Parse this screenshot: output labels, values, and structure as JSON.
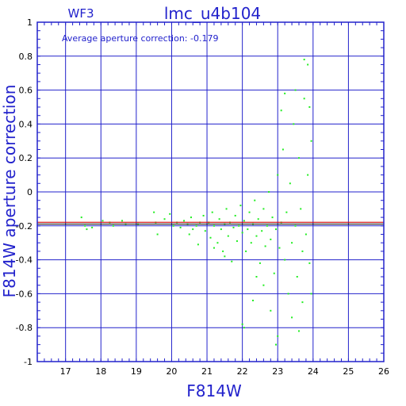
{
  "chart_data": {
    "type": "scatter",
    "title": "lmc_u4b104",
    "chip_label": "WF3",
    "annotation": "Average aperture correction: -0.179",
    "xlabel": "F814W",
    "ylabel": "F814W aperture correction",
    "xlim": [
      16.2,
      26
    ],
    "ylim": [
      -1,
      1
    ],
    "x_ticks": [
      17,
      18,
      19,
      20,
      21,
      22,
      23,
      24,
      25,
      26
    ],
    "y_ticks": [
      -1,
      -0.8,
      -0.6,
      -0.4,
      -0.2,
      0,
      0.2,
      0.4,
      0.6,
      0.8,
      1
    ],
    "grid": true,
    "average_line": -0.179,
    "reference_line": -0.19,
    "colors": {
      "points": "#22ee22",
      "average_line": "#cc0000",
      "reference_line": "#000000",
      "grid": "#2222cc",
      "text": "#2222cc"
    },
    "series": [
      {
        "points": [
          [
            17.45,
            -0.15
          ],
          [
            17.55,
            -0.2
          ],
          [
            17.6,
            -0.22
          ],
          [
            17.75,
            -0.21
          ],
          [
            18.05,
            -0.17
          ],
          [
            18.25,
            -0.18
          ],
          [
            18.35,
            -0.2
          ],
          [
            18.6,
            -0.17
          ],
          [
            18.7,
            -0.19
          ],
          [
            19.05,
            -0.19
          ],
          [
            19.5,
            -0.12
          ],
          [
            19.55,
            -0.18
          ],
          [
            19.6,
            -0.25
          ],
          [
            19.8,
            -0.16
          ],
          [
            19.95,
            -0.13
          ],
          [
            20.05,
            -0.2
          ],
          [
            20.15,
            -0.18
          ],
          [
            20.25,
            -0.21
          ],
          [
            20.35,
            -0.17
          ],
          [
            20.45,
            -0.19
          ],
          [
            20.5,
            -0.25
          ],
          [
            20.55,
            -0.15
          ],
          [
            20.6,
            -0.22
          ],
          [
            20.7,
            -0.2
          ],
          [
            20.75,
            -0.31
          ],
          [
            20.8,
            -0.18
          ],
          [
            20.9,
            -0.14
          ],
          [
            20.95,
            -0.23
          ],
          [
            21.05,
            -0.18
          ],
          [
            21.1,
            -0.27
          ],
          [
            21.15,
            -0.12
          ],
          [
            21.2,
            -0.2
          ],
          [
            21.3,
            -0.3
          ],
          [
            21.35,
            -0.16
          ],
          [
            21.4,
            -0.22
          ],
          [
            21.45,
            -0.35
          ],
          [
            21.5,
            -0.19
          ],
          [
            21.55,
            -0.1
          ],
          [
            21.6,
            -0.26
          ],
          [
            21.65,
            -0.18
          ],
          [
            21.7,
            -0.41
          ],
          [
            21.75,
            -0.21
          ],
          [
            21.8,
            -0.14
          ],
          [
            21.85,
            -0.29
          ],
          [
            21.9,
            -0.2
          ],
          [
            21.95,
            -0.08
          ],
          [
            22.0,
            -0.24
          ],
          [
            22.05,
            -0.17
          ],
          [
            22.1,
            -0.35
          ],
          [
            22.15,
            -0.22
          ],
          [
            22.2,
            -0.12
          ],
          [
            22.25,
            -0.3
          ],
          [
            22.3,
            -0.19
          ],
          [
            22.35,
            -0.05
          ],
          [
            22.4,
            -0.26
          ],
          [
            22.45,
            -0.16
          ],
          [
            22.5,
            -0.42
          ],
          [
            22.55,
            -0.23
          ],
          [
            22.6,
            -0.1
          ],
          [
            22.65,
            -0.32
          ],
          [
            22.7,
            -0.2
          ],
          [
            22.75,
            0.0
          ],
          [
            22.8,
            -0.28
          ],
          [
            22.85,
            -0.15
          ],
          [
            22.9,
            -0.48
          ],
          [
            22.95,
            -0.22
          ],
          [
            23.0,
            0.1
          ],
          [
            23.05,
            -0.33
          ],
          [
            23.1,
            -0.18
          ],
          [
            23.15,
            0.25
          ],
          [
            23.2,
            -0.4
          ],
          [
            23.25,
            -0.12
          ],
          [
            23.3,
            -0.6
          ],
          [
            23.35,
            0.05
          ],
          [
            23.4,
            -0.3
          ],
          [
            23.45,
            0.4
          ],
          [
            23.5,
            -0.2
          ],
          [
            23.55,
            -0.5
          ],
          [
            23.6,
            0.2
          ],
          [
            23.65,
            -0.1
          ],
          [
            23.7,
            -0.35
          ],
          [
            23.75,
            0.55
          ],
          [
            23.8,
            -0.25
          ],
          [
            23.85,
            0.1
          ],
          [
            23.9,
            -0.42
          ],
          [
            23.95,
            0.3
          ],
          [
            22.0,
            -0.78
          ],
          [
            22.3,
            -0.64
          ],
          [
            22.8,
            -0.7
          ],
          [
            23.0,
            -0.85
          ],
          [
            23.4,
            -0.74
          ],
          [
            23.7,
            -0.65
          ],
          [
            23.75,
            0.78
          ],
          [
            23.85,
            0.75
          ],
          [
            23.9,
            0.5
          ],
          [
            23.5,
            0.6
          ],
          [
            23.2,
            0.58
          ],
          [
            22.95,
            -0.9
          ],
          [
            23.6,
            -0.82
          ],
          [
            23.1,
            0.48
          ],
          [
            21.5,
            -0.38
          ],
          [
            21.2,
            -0.33
          ],
          [
            22.6,
            -0.55
          ],
          [
            22.4,
            -0.5
          ],
          [
            23.95,
            -0.6
          ],
          [
            22.05,
            -0.8
          ]
        ]
      }
    ]
  }
}
